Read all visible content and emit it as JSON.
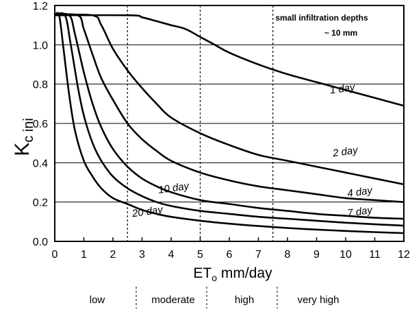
{
  "chart_data": {
    "type": "line",
    "xlabel_main": "ET",
    "xlabel_sub": "o",
    "xlabel_rest": " mm/day",
    "ylabel_main": "K",
    "ylabel_sub": "c ini",
    "xlim": [
      0,
      12
    ],
    "ylim": [
      0,
      1.2
    ],
    "x_ticks": [
      0,
      1,
      2,
      3,
      4,
      5,
      6,
      7,
      8,
      9,
      10,
      11,
      12
    ],
    "y_ticks": [
      "0.0",
      "0.2",
      "0.4",
      "0.6",
      "0.8",
      "1.0",
      "1.2"
    ],
    "y_tick_values": [
      0,
      0.2,
      0.4,
      0.6,
      0.8,
      1.0,
      1.2
    ],
    "grid": "horizontal",
    "annotation_line1": "small infiltration depths",
    "annotation_line2": "~ 10 mm",
    "dashed_vlines_x": [
      2.5,
      5,
      7.5
    ],
    "series": [
      {
        "name": "1 day",
        "x": [
          0,
          2.6,
          3,
          3.5,
          4,
          4.5,
          5,
          5.5,
          6,
          7,
          8,
          9,
          10,
          11,
          12
        ],
        "y": [
          1.15,
          1.15,
          1.14,
          1.12,
          1.1,
          1.08,
          1.04,
          1.0,
          0.96,
          0.9,
          0.85,
          0.81,
          0.77,
          0.73,
          0.69
        ]
      },
      {
        "name": "2 day",
        "x": [
          0,
          1.3,
          1.6,
          2.0,
          2.5,
          3.0,
          3.5,
          4.0,
          5.0,
          6.0,
          7.0,
          8.0,
          9.0,
          10.0,
          11.0,
          12.0
        ],
        "y": [
          1.15,
          1.15,
          1.1,
          0.98,
          0.87,
          0.78,
          0.7,
          0.63,
          0.55,
          0.49,
          0.44,
          0.41,
          0.38,
          0.35,
          0.32,
          0.29
        ]
      },
      {
        "name": "4 day",
        "x": [
          0,
          0.8,
          1.0,
          1.3,
          1.6,
          2.0,
          2.5,
          3.0,
          3.5,
          4.0,
          5.0,
          6.0,
          7.0,
          8.0,
          9.0,
          10.0,
          11.0,
          12.0
        ],
        "y": [
          1.15,
          1.15,
          1.08,
          0.95,
          0.83,
          0.72,
          0.6,
          0.52,
          0.46,
          0.41,
          0.35,
          0.31,
          0.28,
          0.26,
          0.24,
          0.22,
          0.21,
          0.2
        ]
      },
      {
        "name": "7 day",
        "x": [
          0,
          0.5,
          0.7,
          1.0,
          1.3,
          1.6,
          2.0,
          2.5,
          3.0,
          3.5,
          4.0,
          5.0,
          6.0,
          7.0,
          8.0,
          9.0,
          10.0,
          11.0,
          12.0
        ],
        "y": [
          1.15,
          1.15,
          1.05,
          0.86,
          0.7,
          0.58,
          0.47,
          0.38,
          0.32,
          0.28,
          0.25,
          0.21,
          0.19,
          0.17,
          0.155,
          0.14,
          0.13,
          0.12,
          0.115
        ]
      },
      {
        "name": "10 day",
        "x": [
          0,
          0.35,
          0.55,
          0.8,
          1.0,
          1.3,
          1.6,
          2.0,
          2.5,
          3.0,
          3.5,
          4.0,
          5.0,
          6.0,
          7.0,
          8.0,
          9.0,
          10.0,
          11.0,
          12.0
        ],
        "y": [
          1.15,
          1.15,
          1.0,
          0.78,
          0.64,
          0.5,
          0.41,
          0.33,
          0.27,
          0.23,
          0.2,
          0.18,
          0.155,
          0.14,
          0.125,
          0.115,
          0.105,
          0.095,
          0.087,
          0.08
        ]
      },
      {
        "name": "20 day",
        "x": [
          0,
          0.15,
          0.3,
          0.5,
          0.7,
          1.0,
          1.3,
          1.6,
          2.0,
          2.5,
          3.0,
          3.5,
          4.0,
          5.0,
          6.0,
          7.0,
          8.0,
          9.0,
          10.0,
          11.0,
          12.0
        ],
        "y": [
          1.15,
          1.15,
          0.98,
          0.74,
          0.56,
          0.41,
          0.33,
          0.27,
          0.22,
          0.19,
          0.16,
          0.14,
          0.125,
          0.105,
          0.09,
          0.078,
          0.068,
          0.06,
          0.053,
          0.047,
          0.042
        ]
      }
    ],
    "curve_labels": [
      {
        "text": "1 day",
        "x": 9.9,
        "y": 0.76
      },
      {
        "text": "2 day",
        "x": 10.0,
        "y": 0.44
      },
      {
        "text": "4 day",
        "x": 10.5,
        "y": 0.235
      },
      {
        "text": "7 day",
        "x": 10.5,
        "y": 0.135
      },
      {
        "text": "10 day",
        "x": 4.1,
        "y": 0.255
      },
      {
        "text": "20 day",
        "x": 3.2,
        "y": 0.135
      }
    ],
    "climate_classes": [
      "low",
      "moderate",
      "high",
      "very high"
    ]
  }
}
